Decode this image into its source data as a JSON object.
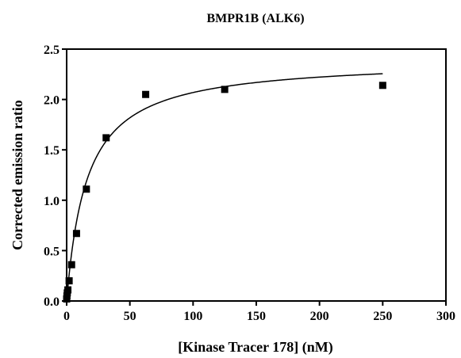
{
  "chart_data": {
    "type": "scatter",
    "title": "BMPR1B (ALK6)",
    "xlabel": "[Kinase Tracer 178] (nM)",
    "ylabel": "Corrected emission ratio",
    "xlim": [
      0,
      300
    ],
    "ylim": [
      0,
      2.5
    ],
    "x_ticks": [
      "0",
      "50",
      "100",
      "150",
      "200",
      "250",
      "300"
    ],
    "y_ticks": [
      "0.0",
      "0.5",
      "1.0",
      "1.5",
      "2.0",
      "2.5"
    ],
    "grid": false,
    "series": [
      {
        "marker": "square",
        "color": "#000000",
        "x": [
          0,
          0.24,
          0.49,
          0.98,
          1.95,
          3.9,
          7.8,
          15.6,
          31.25,
          62.5,
          125,
          250
        ],
        "y": [
          0.02,
          0.05,
          0.08,
          0.11,
          0.2,
          0.36,
          0.67,
          1.11,
          1.62,
          2.05,
          2.1,
          2.14
        ]
      }
    ],
    "fit_curve": {
      "model": "one-site saturation binding",
      "bmax": 2.4,
      "kd": 16,
      "x_range": [
        0,
        250
      ]
    }
  }
}
